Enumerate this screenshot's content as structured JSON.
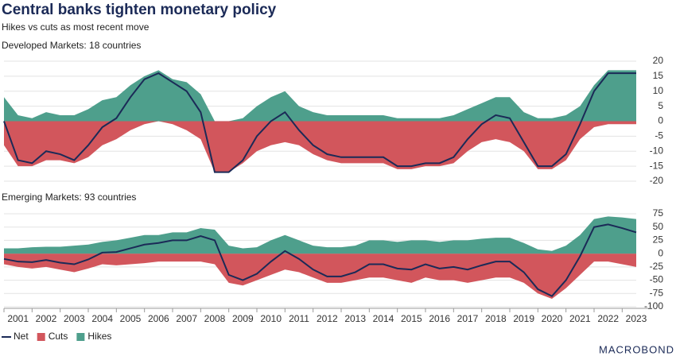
{
  "title": "Central banks tighten monetary policy",
  "subtitle": "Hikes vs cuts as most recent move",
  "logo": "MACROBOND",
  "chart_data": [
    {
      "type": "area",
      "title": "Developed Markets: 18 countries",
      "x": [
        2001,
        2001.5,
        2002,
        2002.5,
        2003,
        2003.5,
        2004,
        2004.5,
        2005,
        2005.5,
        2006,
        2006.5,
        2007,
        2007.5,
        2008,
        2008.5,
        2009,
        2009.5,
        2010,
        2010.5,
        2011,
        2011.5,
        2012,
        2012.5,
        2013,
        2013.5,
        2014,
        2014.5,
        2015,
        2015.5,
        2016,
        2016.5,
        2017,
        2017.5,
        2018,
        2018.5,
        2019,
        2019.5,
        2020,
        2020.5,
        2021,
        2021.5,
        2022,
        2022.5,
        2023,
        2023.5
      ],
      "xlim": [
        2001,
        2023.5
      ],
      "ylim": [
        -20,
        20
      ],
      "yticks": [
        -20,
        -15,
        -10,
        -5,
        0,
        5,
        10,
        15,
        20
      ],
      "grid": true,
      "series": [
        {
          "name": "Net",
          "style": "line",
          "color": "#1b2a57",
          "values": [
            0,
            -13,
            -14,
            -10,
            -11,
            -13,
            -8,
            -2,
            1,
            8,
            14,
            16,
            13,
            10,
            3,
            -17,
            -17,
            -13,
            -5,
            0,
            3,
            -3,
            -8,
            -11,
            -12,
            -12,
            -12,
            -12,
            -15,
            -15,
            -14,
            -14,
            -12,
            -6,
            -1,
            2,
            1,
            -7,
            -15,
            -15,
            -11,
            -1,
            10,
            16,
            16,
            16
          ]
        },
        {
          "name": "Cuts",
          "style": "area",
          "color": "#d2565c",
          "values": [
            -8,
            -15,
            -15,
            -13,
            -13,
            -14,
            -12,
            -8,
            -6,
            -3,
            -1,
            0,
            -1,
            -3,
            -6,
            -17,
            -17,
            -14,
            -10,
            -8,
            -7,
            -8,
            -11,
            -13,
            -14,
            -14,
            -14,
            -14,
            -16,
            -16,
            -15,
            -15,
            -14,
            -10,
            -7,
            -6,
            -7,
            -10,
            -16,
            -16,
            -13,
            -6,
            -2,
            -1,
            -1,
            -1
          ]
        },
        {
          "name": "Hikes",
          "style": "area",
          "color": "#4e9f8c",
          "values": [
            8,
            2,
            1,
            3,
            2,
            2,
            4,
            7,
            8,
            12,
            15,
            17,
            14,
            13,
            9,
            0,
            0,
            1,
            5,
            8,
            10,
            5,
            3,
            2,
            2,
            2,
            2,
            2,
            1,
            1,
            1,
            1,
            2,
            4,
            6,
            8,
            8,
            3,
            1,
            1,
            2,
            5,
            12,
            17,
            17,
            17
          ]
        }
      ]
    },
    {
      "type": "area",
      "title": "Emerging Markets: 93 countries",
      "x": [
        2001,
        2001.5,
        2002,
        2002.5,
        2003,
        2003.5,
        2004,
        2004.5,
        2005,
        2005.5,
        2006,
        2006.5,
        2007,
        2007.5,
        2008,
        2008.5,
        2009,
        2009.5,
        2010,
        2010.5,
        2011,
        2011.5,
        2012,
        2012.5,
        2013,
        2013.5,
        2014,
        2014.5,
        2015,
        2015.5,
        2016,
        2016.5,
        2017,
        2017.5,
        2018,
        2018.5,
        2019,
        2019.5,
        2020,
        2020.5,
        2021,
        2021.5,
        2022,
        2022.5,
        2023,
        2023.5
      ],
      "xlim": [
        2001,
        2023.5
      ],
      "xticks": [
        2001,
        2002,
        2003,
        2004,
        2005,
        2006,
        2007,
        2008,
        2009,
        2010,
        2011,
        2012,
        2013,
        2014,
        2015,
        2016,
        2017,
        2018,
        2019,
        2020,
        2021,
        2022,
        2023
      ],
      "ylim": [
        -100,
        75
      ],
      "yticks": [
        -100,
        -75,
        -50,
        -25,
        0,
        25,
        50,
        75
      ],
      "grid": true,
      "legend": true,
      "series": [
        {
          "name": "Net",
          "style": "line",
          "color": "#1b2a57",
          "values": [
            -10,
            -15,
            -16,
            -12,
            -17,
            -20,
            -11,
            2,
            3,
            10,
            17,
            20,
            25,
            25,
            33,
            25,
            -40,
            -50,
            -38,
            -15,
            5,
            -10,
            -30,
            -43,
            -43,
            -35,
            -20,
            -20,
            -28,
            -30,
            -20,
            -28,
            -25,
            -30,
            -22,
            -15,
            -15,
            -35,
            -67,
            -80,
            -50,
            -5,
            50,
            55,
            48,
            40
          ]
        },
        {
          "name": "Cuts",
          "style": "area",
          "color": "#d2565c",
          "values": [
            -20,
            -25,
            -28,
            -25,
            -30,
            -35,
            -28,
            -20,
            -22,
            -20,
            -18,
            -15,
            -15,
            -15,
            -15,
            -20,
            -55,
            -60,
            -50,
            -40,
            -30,
            -35,
            -45,
            -55,
            -55,
            -50,
            -45,
            -45,
            -50,
            -55,
            -45,
            -50,
            -50,
            -55,
            -50,
            -45,
            -45,
            -55,
            -75,
            -85,
            -65,
            -40,
            -15,
            -15,
            -20,
            -25
          ]
        },
        {
          "name": "Hikes",
          "style": "area",
          "color": "#4e9f8c",
          "values": [
            10,
            10,
            12,
            13,
            13,
            15,
            17,
            22,
            25,
            30,
            35,
            35,
            40,
            40,
            48,
            45,
            15,
            10,
            12,
            25,
            35,
            25,
            15,
            12,
            12,
            15,
            25,
            25,
            22,
            25,
            25,
            22,
            25,
            25,
            28,
            30,
            30,
            20,
            8,
            5,
            15,
            35,
            65,
            70,
            68,
            65
          ]
        }
      ]
    }
  ]
}
